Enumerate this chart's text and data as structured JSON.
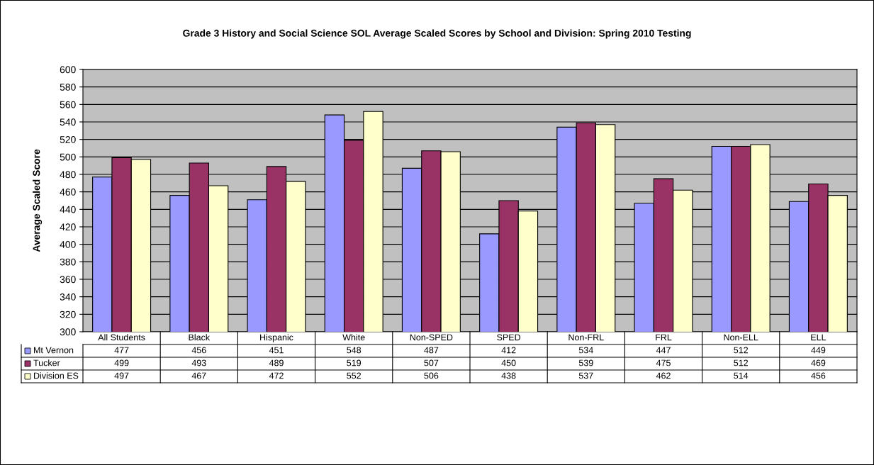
{
  "chart_data": {
    "type": "bar",
    "title": "Grade 3 History and Social Science SOL Average Scaled Scores by School and Division: Spring 2010 Testing",
    "ylabel": "Average Scaled Score",
    "categories": [
      "All Students",
      "Black",
      "Hispanic",
      "White",
      "Non-SPED",
      "SPED",
      "Non-FRL",
      "FRL",
      "Non-ELL",
      "ELL"
    ],
    "series": [
      {
        "name": "Mt Vernon",
        "color": "#9999ff",
        "values": [
          477,
          456,
          451,
          548,
          487,
          412,
          534,
          447,
          512,
          449
        ]
      },
      {
        "name": "Tucker",
        "color": "#993366",
        "values": [
          499,
          493,
          489,
          519,
          507,
          450,
          539,
          475,
          512,
          469
        ]
      },
      {
        "name": "Division ES",
        "color": "#ffffcc",
        "values": [
          497,
          467,
          472,
          552,
          506,
          438,
          537,
          462,
          514,
          456
        ]
      }
    ],
    "ylim": [
      300,
      600
    ],
    "yticks": [
      300,
      320,
      340,
      360,
      380,
      400,
      420,
      440,
      460,
      480,
      500,
      520,
      540,
      560,
      580,
      600
    ],
    "grid": "y",
    "data_labels": true,
    "legend": "bottom"
  }
}
